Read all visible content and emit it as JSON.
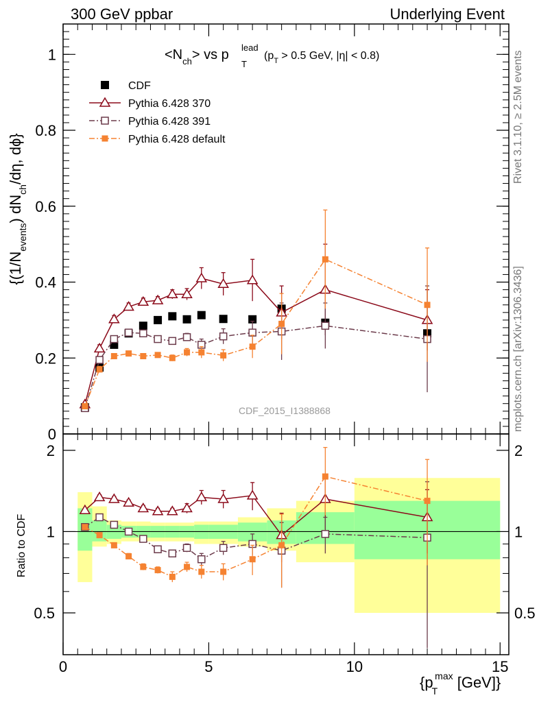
{
  "header": {
    "left": "300 GeV ppbar",
    "right": "Underlying Event"
  },
  "side_labels": {
    "rivet": "Rivet 3.1.10, ≥ 2.5M events",
    "mcplots": "mcplots.cern.ch [arXiv:1306.3436]"
  },
  "watermark": "CDF_2015_I1388868",
  "colors": {
    "cdf": "#000000",
    "p370": "#8b0a1a",
    "p391": "#6b3a4a",
    "pdef": "#f58231",
    "band_inner": "#99ff99",
    "band_outer": "#ffff99"
  },
  "chart_data": [
    {
      "type": "scatter",
      "title": "<N_ch> vs p_T^lead (p_T > 0.5 GeV, |η| < 0.8)",
      "title_parts": {
        "main": "<N",
        "main_sub": "ch",
        "vs": "> vs p",
        "sup": "lead",
        "sub": "T",
        "cut": "(p",
        "cut_sub": "T",
        "cut_rest": " > 0.5 GeV, |η| < 0.8)"
      },
      "ylabel": "{(1/N_events) dN_ch/dη, dϕ}",
      "ylabel_parts": {
        "a": "{(1/N",
        "a_sub": "events",
        "b": ") dN",
        "b_sub": "ch",
        "c": "/dη, dϕ}"
      },
      "xlim": [
        0,
        15.3
      ],
      "ylim": [
        0,
        1.08
      ],
      "yticks": [
        0,
        0.2,
        0.4,
        0.6,
        0.8,
        1
      ],
      "ytick_labels": [
        "0",
        "0.2",
        "0.4",
        "0.6",
        "0.8",
        "1"
      ],
      "legend_position": "top-left",
      "series": [
        {
          "name": "CDF",
          "style": "data",
          "x": [
            0.75,
            1.25,
            1.75,
            2.25,
            2.75,
            3.25,
            3.75,
            4.25,
            4.75,
            5.5,
            6.5,
            7.5,
            9,
            12.5
          ],
          "y": [
            0.07,
            0.175,
            0.235,
            0.265,
            0.285,
            0.3,
            0.31,
            0.302,
            0.313,
            0.303,
            0.302,
            0.33,
            0.293,
            0.265
          ]
        },
        {
          "name": "Pythia 6.428 370",
          "style": "p370",
          "x": [
            0.75,
            1.25,
            1.75,
            2.25,
            2.75,
            3.25,
            3.75,
            4.25,
            4.75,
            5.5,
            6.5,
            7.5,
            9,
            12.5
          ],
          "y": [
            0.078,
            0.225,
            0.302,
            0.335,
            0.348,
            0.352,
            0.368,
            0.368,
            0.41,
            0.395,
            0.405,
            0.32,
            0.38,
            0.3
          ],
          "err": [
            0.005,
            0.01,
            0.01,
            0.01,
            0.01,
            0.01,
            0.012,
            0.015,
            0.028,
            0.03,
            0.055,
            0.07,
            0.12,
            0.08
          ]
        },
        {
          "name": "Pythia 6.428 391",
          "style": "p391",
          "x": [
            0.75,
            1.25,
            1.75,
            2.25,
            2.75,
            3.25,
            3.75,
            4.25,
            4.75,
            5.5,
            6.5,
            7.5,
            9,
            12.5
          ],
          "y": [
            0.068,
            0.195,
            0.25,
            0.267,
            0.265,
            0.25,
            0.245,
            0.255,
            0.235,
            0.257,
            0.267,
            0.27,
            0.285,
            0.25
          ],
          "err": [
            0.004,
            0.008,
            0.008,
            0.008,
            0.008,
            0.008,
            0.008,
            0.01,
            0.015,
            0.02,
            0.03,
            0.075,
            0.06,
            0.14
          ]
        },
        {
          "name": "Pythia 6.428 default",
          "style": "pdef",
          "x": [
            0.75,
            1.25,
            1.75,
            2.25,
            2.75,
            3.25,
            3.75,
            4.25,
            4.75,
            5.5,
            6.5,
            7.5,
            9,
            12.5
          ],
          "y": [
            0.073,
            0.17,
            0.205,
            0.212,
            0.205,
            0.208,
            0.2,
            0.215,
            0.215,
            0.207,
            0.23,
            0.29,
            0.46,
            0.34
          ],
          "err": [
            0.004,
            0.008,
            0.006,
            0.006,
            0.006,
            0.006,
            0.008,
            0.01,
            0.015,
            0.015,
            0.03,
            0.08,
            0.13,
            0.15
          ]
        }
      ]
    },
    {
      "type": "scatter",
      "ylabel": "Ratio to CDF",
      "xlabel": "{p_T^max [GeV]}",
      "xlabel_parts": {
        "a": "{p",
        "sub": "T",
        "sup": "max",
        "b": " [GeV]}"
      },
      "xlim": [
        0,
        15.3
      ],
      "ylim": [
        0.35,
        2.3
      ],
      "xticks": [
        0,
        5,
        10,
        15
      ],
      "xtick_labels": [
        "0",
        "5",
        "10",
        "15"
      ],
      "yticks": [
        0.5,
        1,
        2
      ],
      "ytick_labels": [
        "0.5",
        "1",
        "2"
      ],
      "bands": {
        "edges": [
          0.5,
          1,
          1.5,
          2,
          2.5,
          3,
          3.5,
          4,
          4.5,
          5,
          6,
          7,
          8,
          10,
          15
        ],
        "outer_low": [
          0.65,
          0.88,
          0.9,
          0.92,
          0.92,
          0.92,
          0.92,
          0.92,
          0.9,
          0.9,
          0.88,
          0.85,
          0.77,
          0.5
        ],
        "outer_high": [
          1.4,
          1.24,
          1.1,
          1.09,
          1.09,
          1.08,
          1.08,
          1.08,
          1.09,
          1.09,
          1.13,
          1.22,
          1.3,
          1.58
        ],
        "inner_low": [
          0.85,
          0.92,
          0.94,
          0.95,
          0.95,
          0.95,
          0.95,
          0.95,
          0.94,
          0.94,
          0.92,
          0.9,
          0.9,
          0.79
        ],
        "inner_high": [
          1.22,
          1.1,
          1.06,
          1.05,
          1.05,
          1.05,
          1.05,
          1.05,
          1.06,
          1.06,
          1.08,
          1.1,
          1.18,
          1.3
        ]
      },
      "series": [
        {
          "name": "Pythia 6.428 370",
          "style": "p370",
          "x": [
            0.75,
            1.25,
            1.75,
            2.25,
            2.75,
            3.25,
            3.75,
            4.25,
            4.75,
            5.5,
            6.5,
            7.5,
            9,
            12.5
          ],
          "y": [
            1.2,
            1.34,
            1.32,
            1.28,
            1.22,
            1.19,
            1.19,
            1.22,
            1.34,
            1.32,
            1.36,
            0.97,
            1.32,
            1.13
          ],
          "err": [
            0.02,
            0.03,
            0.03,
            0.03,
            0.03,
            0.03,
            0.03,
            0.05,
            0.08,
            0.1,
            0.16,
            0.2,
            0.3,
            0.3
          ]
        },
        {
          "name": "Pythia 6.428 391",
          "style": "p391",
          "x": [
            0.75,
            1.25,
            1.75,
            2.25,
            2.75,
            3.25,
            3.75,
            4.25,
            4.75,
            5.5,
            6.5,
            7.5,
            9,
            12.5
          ],
          "y": [
            1.04,
            1.13,
            1.06,
            1.0,
            0.94,
            0.86,
            0.83,
            0.87,
            0.79,
            0.87,
            0.9,
            0.85,
            0.98,
            0.95
          ],
          "err": [
            0.02,
            0.02,
            0.02,
            0.02,
            0.02,
            0.02,
            0.02,
            0.03,
            0.04,
            0.05,
            0.08,
            0.23,
            0.15,
            0.58
          ]
        },
        {
          "name": "Pythia 6.428 default",
          "style": "pdef",
          "x": [
            0.75,
            1.25,
            1.75,
            2.25,
            2.75,
            3.25,
            3.75,
            4.25,
            4.75,
            5.5,
            6.5,
            7.5,
            9,
            12.5
          ],
          "y": [
            1.04,
            0.97,
            0.89,
            0.81,
            0.74,
            0.72,
            0.68,
            0.74,
            0.71,
            0.71,
            0.79,
            0.89,
            1.6,
            1.3
          ],
          "err": [
            0.02,
            0.02,
            0.02,
            0.02,
            0.02,
            0.02,
            0.03,
            0.03,
            0.04,
            0.05,
            0.1,
            0.27,
            0.45,
            0.55
          ]
        }
      ]
    }
  ]
}
